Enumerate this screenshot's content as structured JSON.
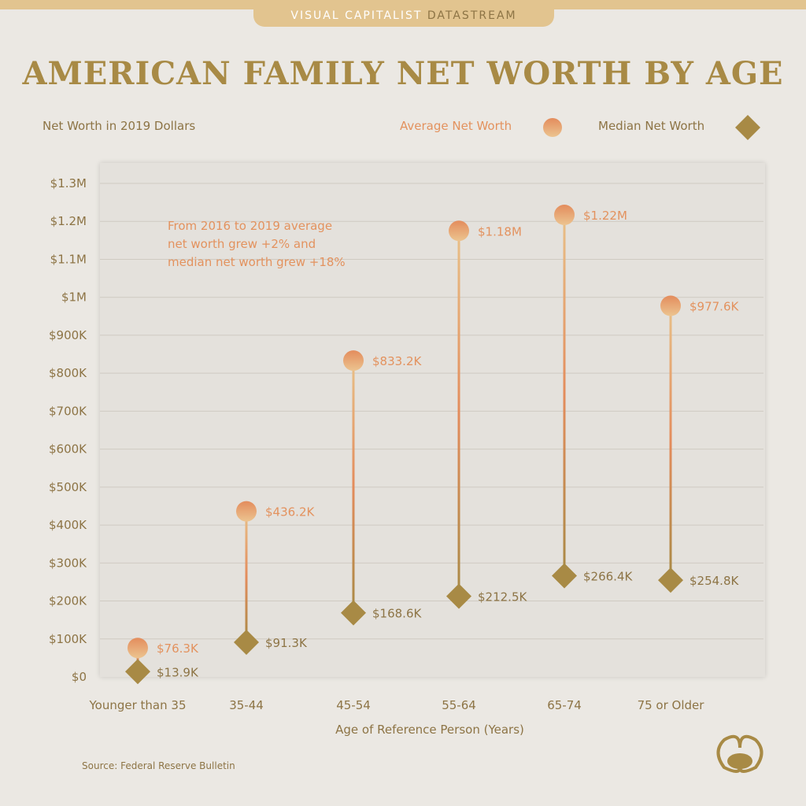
{
  "header": {
    "brand": "VISUAL CAPITALIST",
    "brand_sub": "DATASTREAM"
  },
  "colors": {
    "avg": "#e3925e",
    "median": "#a88a45",
    "text": "#8d7445"
  },
  "chart_data": {
    "type": "lollipop",
    "title": "AMERICAN FAMILY NET WORTH BY AGE",
    "subtitle": "Net Worth in 2019 Dollars",
    "xlabel": "Age of Reference Person (Years)",
    "ylabel": "",
    "ylim": [
      0,
      1300000
    ],
    "yticks": [
      0,
      100000,
      200000,
      300000,
      400000,
      500000,
      600000,
      700000,
      800000,
      900000,
      1000000,
      1100000,
      1200000,
      1300000
    ],
    "ytick_labels": [
      "$0",
      "$100K",
      "$200K",
      "$300K",
      "$400K",
      "$500K",
      "$600K",
      "$700K",
      "$800K",
      "$900K",
      "$1M",
      "$1.1M",
      "$1.2M",
      "$1.3M"
    ],
    "categories": [
      "Younger than 35",
      "35-44",
      "45-54",
      "55-64",
      "65-74",
      "75 or Older"
    ],
    "series": [
      {
        "name": "Average Net Worth",
        "values": [
          76300,
          436200,
          833200,
          1175000,
          1217000,
          977600
        ],
        "labels": [
          "$76.3K",
          "$436.2K",
          "$833.2K",
          "$1.18M",
          "$1.22M",
          "$977.6K"
        ]
      },
      {
        "name": "Median Net Worth",
        "values": [
          13900,
          91300,
          168600,
          212500,
          266400,
          254800
        ],
        "labels": [
          "$13.9K",
          "$91.3K",
          "$168.6K",
          "$212.5K",
          "$266.4K",
          "$254.8K"
        ]
      }
    ],
    "annotation": [
      "From 2016 to 2019 average",
      "net worth grew +2% and",
      "median net worth grew +18%"
    ],
    "legend": "top-right",
    "grid": true
  },
  "source": "Source: Federal Reserve Bulletin"
}
